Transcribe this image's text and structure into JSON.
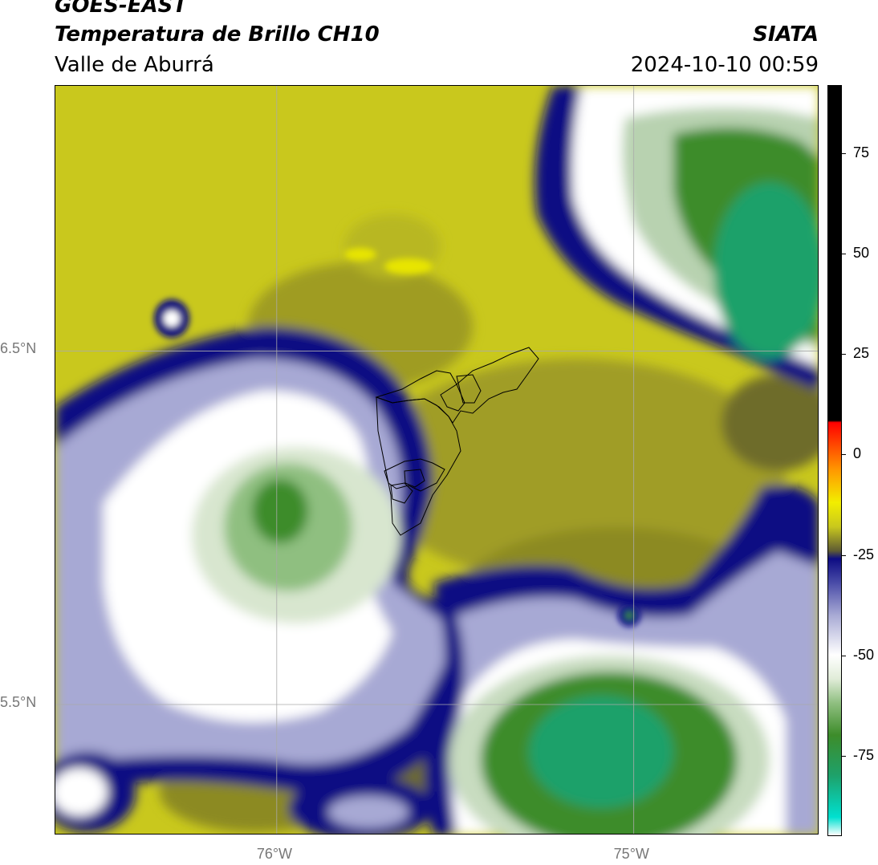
{
  "header": {
    "title_line1": "GOES-EAST",
    "title_line2": "Temperatura de Brillo CH10",
    "org": "SIATA",
    "region": "Valle de Aburrá",
    "timestamp": "2024-10-10 00:59"
  },
  "map": {
    "lat_labels": [
      {
        "text": "6.5°N",
        "lat": 6.5
      },
      {
        "text": "5.5°N",
        "lat": 5.5
      }
    ],
    "lon_labels": [
      {
        "text": "76°W",
        "lon": -76.0
      },
      {
        "text": "75°W",
        "lon": -75.0
      }
    ],
    "extent": {
      "lon_min": -76.62,
      "lon_max": -74.48,
      "lat_min": 5.13,
      "lat_max": 7.25
    },
    "colors": {
      "warm_yellow": "#c9c81d",
      "olive": "#8c8a22",
      "dark_olive": "#5f5c33",
      "navy": "#0d0c83",
      "lavender": "#a7a9d4",
      "white": "#ffffff",
      "light_green": "#c8dcc0",
      "green": "#3d8c2a",
      "teal": "#1ea16a",
      "grid": "#aaaaaa"
    }
  },
  "colorbar": {
    "ticks": [
      {
        "text": "75",
        "value": 75
      },
      {
        "text": "50",
        "value": 50
      },
      {
        "text": "25",
        "value": 25
      },
      {
        "text": "0",
        "value": 0
      },
      {
        "text": "-25",
        "value": -25
      },
      {
        "text": "-50",
        "value": -50
      },
      {
        "text": "-75",
        "value": -75
      }
    ],
    "vmin": -95,
    "vmax": 92,
    "stops": [
      {
        "value": -95,
        "color": "#ffffff"
      },
      {
        "value": -90.5,
        "color": "#00e0d0"
      },
      {
        "value": -80,
        "color": "#1ea16a"
      },
      {
        "value": -70,
        "color": "#3d8c2a"
      },
      {
        "value": -62,
        "color": "#8fbf80"
      },
      {
        "value": -56,
        "color": "#e0ecd8"
      },
      {
        "value": -50,
        "color": "#ffffff"
      },
      {
        "value": -40,
        "color": "#a7a9d4"
      },
      {
        "value": -32,
        "color": "#4a4ca8"
      },
      {
        "value": -26,
        "color": "#0d0c83"
      },
      {
        "value": -24,
        "color": "#5f5c33"
      },
      {
        "value": -18,
        "color": "#c9c81d"
      },
      {
        "value": -12,
        "color": "#f2ee00"
      },
      {
        "value": -4,
        "color": "#ff9a00"
      },
      {
        "value": 8,
        "color": "#ff0000"
      },
      {
        "value": 8.5,
        "color": "#000000"
      },
      {
        "value": 92,
        "color": "#000000"
      }
    ]
  }
}
